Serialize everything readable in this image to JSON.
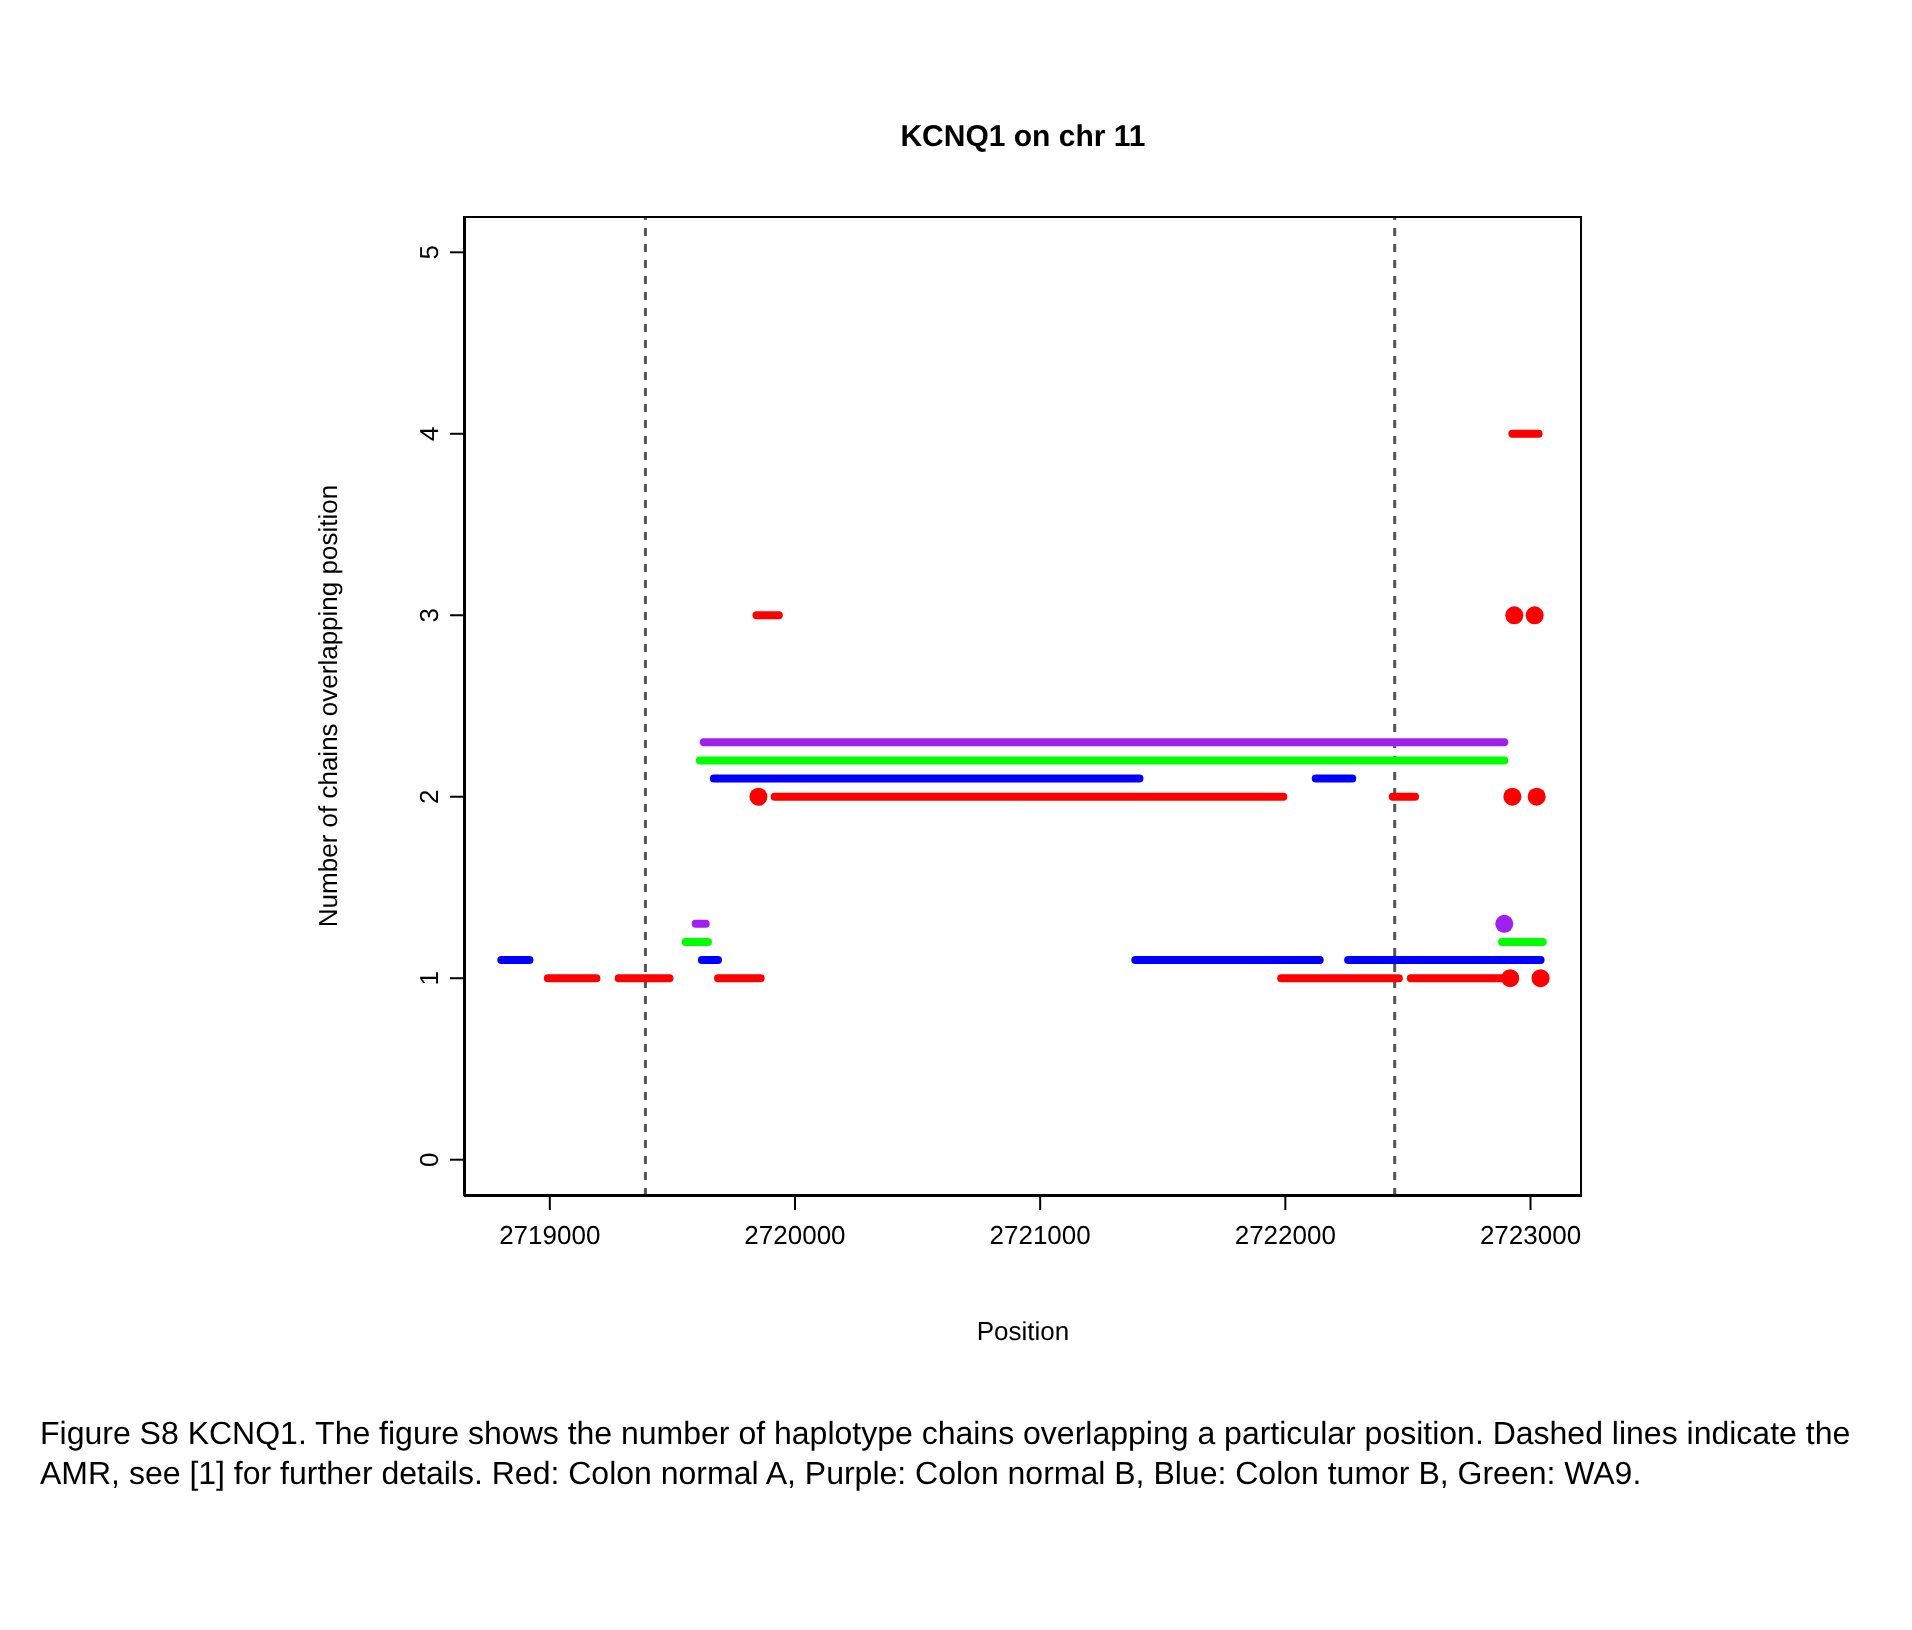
{
  "chart_data": {
    "type": "line",
    "title": "KCNQ1 on chr 11",
    "xlabel": "Position",
    "ylabel": "Number of chains overlapping position",
    "xlim": [
      2718650,
      2723210
    ],
    "xticks": [
      2719000,
      2720000,
      2721000,
      2722000,
      2723000
    ],
    "ylim": [
      -0.2,
      5.2
    ],
    "yticks": [
      0,
      1,
      2,
      3,
      4,
      5
    ],
    "grid": false,
    "ref_lines": [
      {
        "axis": "x",
        "value": 2719390,
        "color": "#555555",
        "line_style": "dashed"
      },
      {
        "axis": "x",
        "value": 2722446,
        "color": "#555555",
        "line_style": "dashed"
      }
    ],
    "series": [
      {
        "color": "#ff0000",
        "x": [
          2718992,
          2719190
        ],
        "values": [
          1,
          1
        ]
      },
      {
        "color": "#ff0000",
        "x": [
          2719281,
          2719488
        ],
        "values": [
          1,
          1
        ]
      },
      {
        "color": "#ff0000",
        "x": [
          2719686,
          2719860
        ],
        "values": [
          1,
          1
        ]
      },
      {
        "color": "#ff0000",
        "x": [
          2719843,
          2719934
        ],
        "values": [
          3,
          3
        ]
      },
      {
        "type": "scatter",
        "marker": "circle",
        "color": "#ff0000",
        "x": [
          2719851
        ],
        "values": [
          2
        ]
      },
      {
        "color": "#ff0000",
        "x": [
          2719917,
          2721992
        ],
        "values": [
          2,
          2
        ]
      },
      {
        "color": "#ff0000",
        "x": [
          2721983,
          2722463
        ],
        "values": [
          1,
          1
        ]
      },
      {
        "color": "#ff0000",
        "x": [
          2722512,
          2722884
        ],
        "values": [
          1,
          1
        ]
      },
      {
        "type": "scatter",
        "marker": "circle",
        "color": "#ff0000",
        "x": [
          2722917
        ],
        "values": [
          1
        ]
      },
      {
        "type": "scatter",
        "marker": "circle",
        "color": "#ff0000",
        "x": [
          2723041
        ],
        "values": [
          1
        ]
      },
      {
        "color": "#ff0000",
        "x": [
          2722438,
          2722529
        ],
        "values": [
          2,
          2
        ]
      },
      {
        "type": "scatter",
        "marker": "circle",
        "color": "#ff0000",
        "x": [
          2722926
        ],
        "values": [
          2
        ]
      },
      {
        "type": "scatter",
        "marker": "circle",
        "color": "#ff0000",
        "x": [
          2723025
        ],
        "values": [
          2
        ]
      },
      {
        "type": "scatter",
        "marker": "circle",
        "color": "#ff0000",
        "x": [
          2722934
        ],
        "values": [
          3
        ]
      },
      {
        "type": "scatter",
        "marker": "circle",
        "color": "#ff0000",
        "x": [
          2723017
        ],
        "values": [
          3
        ]
      },
      {
        "color": "#ff0000",
        "x": [
          2722926,
          2723033
        ],
        "values": [
          4,
          4
        ]
      },
      {
        "color": "#0000ff",
        "x": [
          2718802,
          2718917
        ],
        "values": [
          1.1,
          1.1
        ]
      },
      {
        "color": "#0000ff",
        "x": [
          2719620,
          2719686
        ],
        "values": [
          1.1,
          1.1
        ]
      },
      {
        "color": "#0000ff",
        "x": [
          2719669,
          2721405
        ],
        "values": [
          2.1,
          2.1
        ]
      },
      {
        "color": "#0000ff",
        "x": [
          2722124,
          2722273
        ],
        "values": [
          2.1,
          2.1
        ]
      },
      {
        "color": "#0000ff",
        "x": [
          2721388,
          2722140
        ],
        "values": [
          1.1,
          1.1
        ]
      },
      {
        "color": "#0000ff",
        "x": [
          2722256,
          2723041
        ],
        "values": [
          1.1,
          1.1
        ]
      },
      {
        "color": "#00ff00",
        "x": [
          2719554,
          2719645
        ],
        "values": [
          1.2,
          1.2
        ]
      },
      {
        "color": "#00ff00",
        "x": [
          2719612,
          2722893
        ],
        "values": [
          2.2,
          2.2
        ]
      },
      {
        "color": "#00ff00",
        "x": [
          2722884,
          2723050
        ],
        "values": [
          1.2,
          1.2
        ]
      },
      {
        "color": "#a020f0",
        "x": [
          2719595,
          2719636
        ],
        "values": [
          1.3,
          1.3
        ]
      },
      {
        "color": "#a020f0",
        "x": [
          2719628,
          2722893
        ],
        "values": [
          2.3,
          2.3
        ]
      },
      {
        "type": "scatter",
        "marker": "circle",
        "color": "#a020f0",
        "x": [
          2722893
        ],
        "values": [
          1.3
        ]
      }
    ],
    "annotations": [
      "Figure S8 KCNQ1. The figure shows the number of haplotype chains overlapping a particular position. Dashed lines indicate the AMR, see [1] for further details. Red: Colon normal A, Purple: Colon normal B, Blue: Colon tumor B, Green: WA9."
    ]
  }
}
